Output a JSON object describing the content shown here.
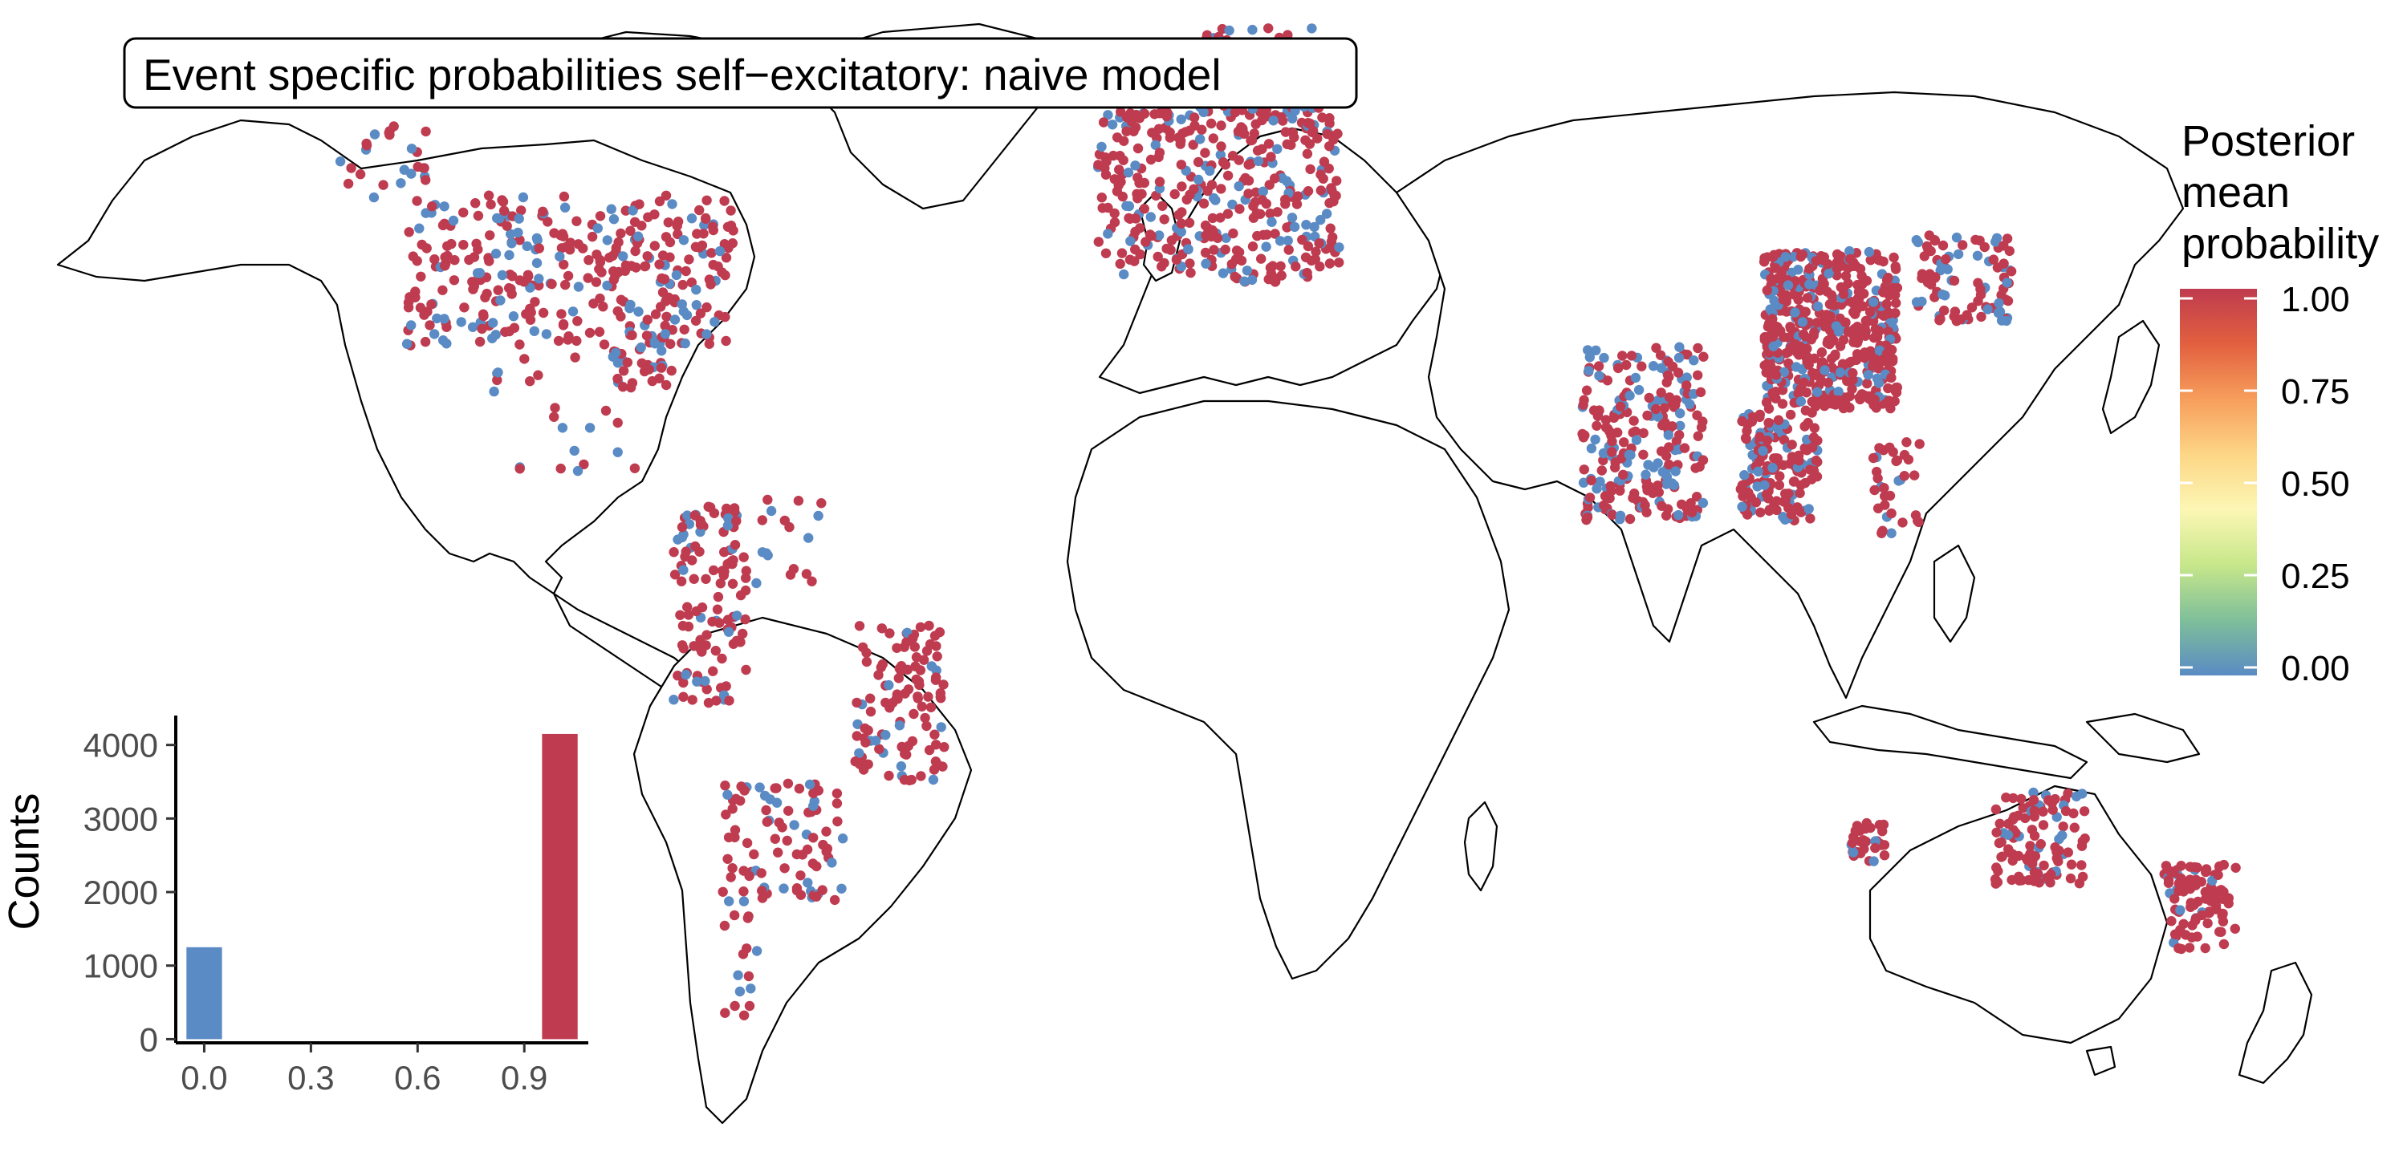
{
  "title": "Event specific probabilities self−excitatory: naive model",
  "colors": {
    "low": "#5a8bc4",
    "high": "#bf3b4f",
    "land_stroke": "#000000",
    "background": "#ffffff",
    "gradient": [
      "#5a8bc4",
      "#7fbf9a",
      "#c7e78a",
      "#fcf7b4",
      "#fdd686",
      "#f79e5c",
      "#e2603f",
      "#bf3b4f"
    ]
  },
  "legend": {
    "title_lines": [
      "Posterior",
      "mean",
      "probability"
    ],
    "ticks": [
      "1.00",
      "0.75",
      "0.50",
      "0.25",
      "0.00"
    ],
    "tick_values": [
      1.0,
      0.75,
      0.5,
      0.25,
      0.0
    ],
    "placement": "right"
  },
  "chart_data": {
    "type": "bar",
    "categories": [
      "0.0",
      "0.3",
      "0.6",
      "0.9"
    ],
    "bins": [
      {
        "x": 0.0,
        "value": 1250,
        "color": "#5a8bc4"
      },
      {
        "x": 1.0,
        "value": 4150,
        "color": "#bf3b4f"
      }
    ],
    "xticks": [
      "0.0",
      "0.3",
      "0.6",
      "0.9"
    ],
    "xtick_values": [
      0.0,
      0.3,
      0.6,
      0.9
    ],
    "yticks": [
      "0",
      "1000",
      "2000",
      "3000",
      "4000"
    ],
    "ytick_values": [
      0,
      1000,
      2000,
      3000,
      4000
    ],
    "xlabel": "",
    "ylabel": "Counts",
    "xlim": [
      -0.08,
      1.08
    ],
    "ylim": [
      -50,
      4400
    ],
    "placement": "bottom-left"
  },
  "event_regions": [
    {
      "region": "north-america",
      "lon": [
        -124,
        -70
      ],
      "lat": [
        30,
        49
      ],
      "count": 340,
      "share_low": 0.28
    },
    {
      "region": "pacific-northwest",
      "lon": [
        -135,
        -120
      ],
      "lat": [
        48,
        58
      ],
      "count": 25,
      "share_low": 0.2
    },
    {
      "region": "florida-gulf",
      "lon": [
        -90,
        -80
      ],
      "lat": [
        25,
        32
      ],
      "count": 35,
      "share_low": 0.3
    },
    {
      "region": "mexico-central-america",
      "lon": [
        -110,
        -85
      ],
      "lat": [
        14,
        30
      ],
      "count": 25,
      "share_low": 0.2
    },
    {
      "region": "andes-north",
      "lon": [
        -80,
        -68
      ],
      "lat": [
        -15,
        10
      ],
      "count": 110,
      "share_low": 0.2
    },
    {
      "region": "venezuela-guyana",
      "lon": [
        -72,
        -55
      ],
      "lat": [
        0,
        11
      ],
      "count": 25,
      "share_low": 0.2
    },
    {
      "region": "brazil-east",
      "lon": [
        -50,
        -35
      ],
      "lat": [
        -25,
        -5
      ],
      "count": 110,
      "share_low": 0.15
    },
    {
      "region": "south-america-south",
      "lon": [
        -72,
        -52
      ],
      "lat": [
        -40,
        -25
      ],
      "count": 90,
      "share_low": 0.25
    },
    {
      "region": "patagonia",
      "lon": [
        -72,
        -66
      ],
      "lat": [
        -55,
        -40
      ],
      "count": 15,
      "share_low": 0.4
    },
    {
      "region": "europe",
      "lon": [
        -10,
        30
      ],
      "lat": [
        38,
        60
      ],
      "count": 380,
      "share_low": 0.25
    },
    {
      "region": "scandinavia",
      "lon": [
        5,
        30
      ],
      "lat": [
        58,
        70
      ],
      "count": 70,
      "share_low": 0.3
    },
    {
      "region": "india",
      "lon": [
        70,
        90
      ],
      "lat": [
        8,
        30
      ],
      "count": 230,
      "share_low": 0.3
    },
    {
      "region": "china-east",
      "lon": [
        100,
        122
      ],
      "lat": [
        22,
        42
      ],
      "count": 520,
      "share_low": 0.22
    },
    {
      "region": "korea-japan",
      "lon": [
        125,
        141
      ],
      "lat": [
        33,
        44
      ],
      "count": 90,
      "share_low": 0.25
    },
    {
      "region": "southeast-asia",
      "lon": [
        96,
        109
      ],
      "lat": [
        8,
        22
      ],
      "count": 150,
      "share_low": 0.25
    },
    {
      "region": "philippines",
      "lon": [
        118,
        126
      ],
      "lat": [
        6,
        18
      ],
      "count": 35,
      "share_low": 0.2
    },
    {
      "region": "australia-southeast",
      "lon": [
        138,
        153
      ],
      "lat": [
        -38,
        -26
      ],
      "count": 110,
      "share_low": 0.2
    },
    {
      "region": "australia-southwest",
      "lon": [
        114,
        120
      ],
      "lat": [
        -35,
        -30
      ],
      "count": 30,
      "share_low": 0.15
    },
    {
      "region": "new-zealand",
      "lon": [
        166,
        178
      ],
      "lat": [
        -46,
        -35
      ],
      "count": 90,
      "share_low": 0.2
    }
  ]
}
